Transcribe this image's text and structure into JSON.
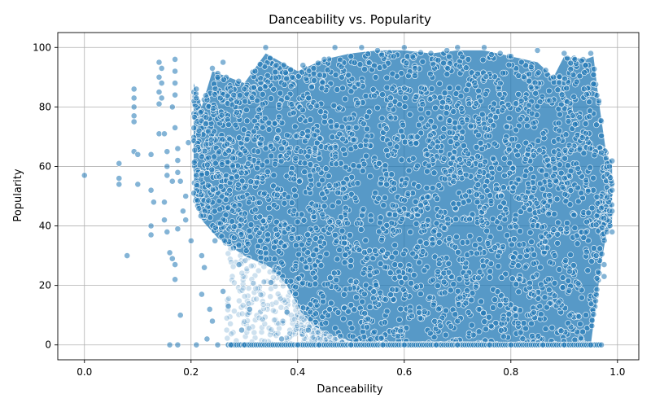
{
  "chart_data": {
    "type": "scatter",
    "title": "Danceability vs. Popularity",
    "xlabel": "Danceability",
    "ylabel": "Popularity",
    "xlim": [
      -0.05,
      1.04
    ],
    "ylim": [
      -5,
      105
    ],
    "xticks": [
      0.0,
      0.2,
      0.4,
      0.6,
      0.8,
      1.0
    ],
    "xtick_labels": [
      "0.0",
      "0.2",
      "0.4",
      "0.6",
      "0.8",
      "1.0"
    ],
    "yticks": [
      0,
      20,
      40,
      60,
      80,
      100
    ],
    "ytick_labels": [
      "0",
      "20",
      "40",
      "60",
      "80",
      "100"
    ],
    "grid": true,
    "legend": "none",
    "point_color": "#1f77b4",
    "point_edge_color": "#ffffff",
    "point_alpha": 0.35,
    "series": [
      {
        "points": [
          [
            0.0,
            57
          ],
          [
            0.065,
            61
          ],
          [
            0.065,
            56
          ],
          [
            0.065,
            54
          ],
          [
            0.08,
            30
          ],
          [
            0.093,
            86
          ],
          [
            0.093,
            83
          ],
          [
            0.093,
            80
          ],
          [
            0.093,
            77
          ],
          [
            0.093,
            75
          ],
          [
            0.093,
            65
          ],
          [
            0.1,
            64
          ],
          [
            0.1,
            54
          ],
          [
            0.125,
            64
          ],
          [
            0.125,
            52
          ],
          [
            0.125,
            40
          ],
          [
            0.125,
            37
          ],
          [
            0.13,
            48
          ],
          [
            0.14,
            95
          ],
          [
            0.14,
            90
          ],
          [
            0.14,
            85
          ],
          [
            0.14,
            81
          ],
          [
            0.14,
            71
          ],
          [
            0.145,
            93
          ],
          [
            0.145,
            88
          ],
          [
            0.145,
            83
          ],
          [
            0.15,
            71
          ],
          [
            0.15,
            48
          ],
          [
            0.15,
            42
          ],
          [
            0.155,
            65
          ],
          [
            0.155,
            60
          ],
          [
            0.155,
            57
          ],
          [
            0.155,
            38
          ],
          [
            0.16,
            31
          ],
          [
            0.16,
            0
          ],
          [
            0.165,
            80
          ],
          [
            0.165,
            55
          ],
          [
            0.165,
            29
          ],
          [
            0.17,
            96
          ],
          [
            0.17,
            92
          ],
          [
            0.17,
            88
          ],
          [
            0.17,
            84
          ],
          [
            0.17,
            73
          ],
          [
            0.17,
            27
          ],
          [
            0.17,
            22
          ],
          [
            0.175,
            66
          ],
          [
            0.175,
            62
          ],
          [
            0.175,
            58
          ],
          [
            0.175,
            39
          ],
          [
            0.175,
            0
          ],
          [
            0.18,
            55
          ],
          [
            0.18,
            10
          ],
          [
            0.185,
            45
          ],
          [
            0.19,
            50
          ],
          [
            0.19,
            42
          ],
          [
            0.195,
            68
          ],
          [
            0.2,
            35
          ],
          [
            0.205,
            51
          ],
          [
            0.21,
            86
          ],
          [
            0.21,
            83
          ],
          [
            0.21,
            57
          ],
          [
            0.21,
            0
          ],
          [
            0.215,
            72
          ],
          [
            0.22,
            30
          ],
          [
            0.22,
            17
          ],
          [
            0.225,
            26
          ],
          [
            0.23,
            2
          ],
          [
            0.235,
            12
          ],
          [
            0.24,
            93
          ],
          [
            0.24,
            8
          ],
          [
            0.245,
            35
          ],
          [
            0.25,
            90
          ],
          [
            0.25,
            0
          ],
          [
            0.26,
            95
          ],
          [
            0.26,
            18
          ],
          [
            0.27,
            13
          ],
          [
            0.275,
            0
          ],
          [
            0.28,
            84
          ],
          [
            0.29,
            27
          ],
          [
            0.295,
            5
          ],
          [
            0.3,
            86
          ],
          [
            0.3,
            0
          ],
          [
            0.31,
            12
          ],
          [
            0.32,
            92
          ],
          [
            0.33,
            35
          ],
          [
            0.34,
            100
          ],
          [
            0.35,
            21
          ],
          [
            0.36,
            94
          ],
          [
            0.37,
            2
          ],
          [
            0.38,
            11
          ],
          [
            0.39,
            90
          ],
          [
            0.4,
            0
          ],
          [
            0.41,
            94
          ],
          [
            0.42,
            5
          ],
          [
            0.43,
            93
          ],
          [
            0.44,
            0
          ],
          [
            0.45,
            96
          ],
          [
            0.46,
            12
          ],
          [
            0.47,
            100
          ],
          [
            0.48,
            3
          ],
          [
            0.5,
            97
          ],
          [
            0.5,
            0
          ],
          [
            0.52,
            100
          ],
          [
            0.53,
            6
          ],
          [
            0.55,
            99
          ],
          [
            0.56,
            0
          ],
          [
            0.58,
            97
          ],
          [
            0.6,
            100
          ],
          [
            0.6,
            0
          ],
          [
            0.62,
            93
          ],
          [
            0.63,
            9
          ],
          [
            0.65,
            98
          ],
          [
            0.66,
            0
          ],
          [
            0.68,
            99
          ],
          [
            0.7,
            100
          ],
          [
            0.7,
            0
          ],
          [
            0.72,
            96
          ],
          [
            0.74,
            12
          ],
          [
            0.75,
            100
          ],
          [
            0.76,
            0
          ],
          [
            0.78,
            98
          ],
          [
            0.8,
            97
          ],
          [
            0.8,
            0
          ],
          [
            0.82,
            95
          ],
          [
            0.84,
            3
          ],
          [
            0.85,
            99
          ],
          [
            0.86,
            0
          ],
          [
            0.88,
            90
          ],
          [
            0.9,
            98
          ],
          [
            0.9,
            0
          ],
          [
            0.92,
            96
          ],
          [
            0.93,
            7
          ],
          [
            0.94,
            94
          ],
          [
            0.95,
            98
          ],
          [
            0.95,
            0
          ],
          [
            0.96,
            17
          ],
          [
            0.96,
            30
          ],
          [
            0.965,
            82
          ],
          [
            0.97,
            46
          ],
          [
            0.97,
            0
          ],
          [
            0.975,
            27
          ],
          [
            0.975,
            23
          ],
          [
            0.98,
            38
          ],
          [
            0.985,
            60
          ],
          [
            0.99,
            52
          ],
          [
            0.99,
            45
          ],
          [
            0.99,
            38
          ]
        ]
      }
    ],
    "density_region": {
      "upper_envelope": [
        [
          0.205,
          88
        ],
        [
          0.22,
          80
        ],
        [
          0.24,
          92
        ],
        [
          0.3,
          88
        ],
        [
          0.34,
          98
        ],
        [
          0.4,
          92
        ],
        [
          0.45,
          96
        ],
        [
          0.5,
          98
        ],
        [
          0.55,
          99
        ],
        [
          0.6,
          99
        ],
        [
          0.65,
          98
        ],
        [
          0.7,
          99
        ],
        [
          0.75,
          99
        ],
        [
          0.8,
          97
        ],
        [
          0.85,
          95
        ],
        [
          0.88,
          90
        ],
        [
          0.9,
          97
        ],
        [
          0.94,
          96
        ],
        [
          0.955,
          97
        ],
        [
          0.965,
          82
        ],
        [
          0.98,
          63
        ],
        [
          0.99,
          62
        ]
      ],
      "lower_envelope": [
        [
          0.205,
          50
        ],
        [
          0.22,
          42
        ],
        [
          0.25,
          36
        ],
        [
          0.3,
          30
        ],
        [
          0.35,
          26
        ],
        [
          0.38,
          20
        ],
        [
          0.41,
          10
        ],
        [
          0.44,
          5
        ],
        [
          0.5,
          0
        ],
        [
          0.9,
          0
        ],
        [
          0.95,
          0
        ],
        [
          0.97,
          28
        ],
        [
          0.98,
          38
        ],
        [
          0.99,
          40
        ]
      ],
      "zero_band": [
        0.27,
        0.97
      ]
    }
  }
}
